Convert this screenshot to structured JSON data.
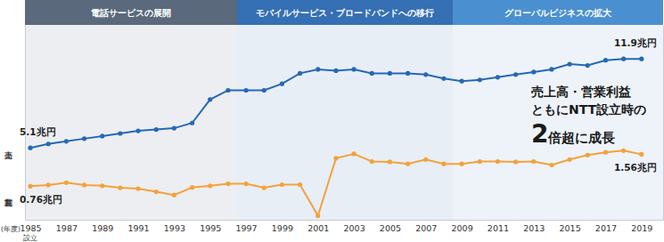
{
  "chart_data": {
    "type": "line",
    "x": [
      1985,
      1986,
      1987,
      1988,
      1989,
      1990,
      1991,
      1992,
      1993,
      1994,
      1995,
      1996,
      1997,
      1998,
      1999,
      2000,
      2001,
      2002,
      2003,
      2004,
      2005,
      2006,
      2007,
      2008,
      2009,
      2010,
      2011,
      2012,
      2013,
      2014,
      2015,
      2016,
      2017,
      2018,
      2019
    ],
    "xlim": [
      1984.7,
      2020.2
    ],
    "xticks": [
      1985,
      1987,
      1989,
      1991,
      1993,
      1995,
      1997,
      1999,
      2001,
      2003,
      2005,
      2007,
      2009,
      2011,
      2013,
      2015,
      2017,
      2019
    ],
    "x_unit_label": "(年度)",
    "x_note": {
      "x": 1985,
      "text": "設立"
    },
    "ylim": [
      -0.4,
      14.5
    ],
    "yticks": [],
    "y2lim": [
      -0.08,
      4.8
    ],
    "y2ticks": [],
    "tick_labels": "x",
    "marker": "circle",
    "series": [
      {
        "name": "売上高",
        "color": "#2569b3",
        "values": [
          5.1,
          5.4,
          5.6,
          5.8,
          6.0,
          6.2,
          6.4,
          6.5,
          6.6,
          7.0,
          8.8,
          9.5,
          9.5,
          9.5,
          10.0,
          10.8,
          11.1,
          11.0,
          11.1,
          10.8,
          10.8,
          10.8,
          10.7,
          10.4,
          10.2,
          10.3,
          10.5,
          10.7,
          10.9,
          11.1,
          11.5,
          11.4,
          11.8,
          11.9,
          11.9
        ]
      },
      {
        "name": "営業利益",
        "color": "#f3a23b",
        "axis": "y2",
        "values": [
          0.76,
          0.79,
          0.85,
          0.79,
          0.77,
          0.72,
          0.7,
          0.62,
          0.54,
          0.73,
          0.77,
          0.82,
          0.82,
          0.72,
          0.8,
          0.8,
          0.02,
          1.46,
          1.57,
          1.38,
          1.37,
          1.32,
          1.43,
          1.32,
          1.32,
          1.38,
          1.38,
          1.37,
          1.38,
          1.29,
          1.43,
          1.54,
          1.61,
          1.65,
          1.56
        ]
      }
    ],
    "annotations": [
      {
        "text": "5.1兆円",
        "series": 0,
        "x": 1985,
        "y": 5.1
      },
      {
        "text": "11.9兆円",
        "series": 0,
        "x": 2019,
        "y": 11.9
      },
      {
        "text": "0.76兆円",
        "series": 1,
        "x": 1985,
        "y": 0.76
      },
      {
        "text": "1.56兆円",
        "series": 1,
        "x": 2019,
        "y": 1.56
      }
    ],
    "periods": [
      {
        "label": "電話サービスの展開",
        "start": 1984.7,
        "end": 1996.5,
        "color": "#5a6a7c"
      },
      {
        "label": "モバイルサービス・ブロードバンドへの移行",
        "start": 1996.5,
        "end": 2008.5,
        "color": "#356fb4"
      },
      {
        "label": "グローバルビジネスの拡大",
        "start": 2008.5,
        "end": 2020.2,
        "color": "#4a90d0"
      }
    ],
    "callout": {
      "lines": [
        "売上高・営業利益",
        "ともにNTT設立時の"
      ],
      "emphasis": "2",
      "tail": "倍超に成長"
    }
  }
}
